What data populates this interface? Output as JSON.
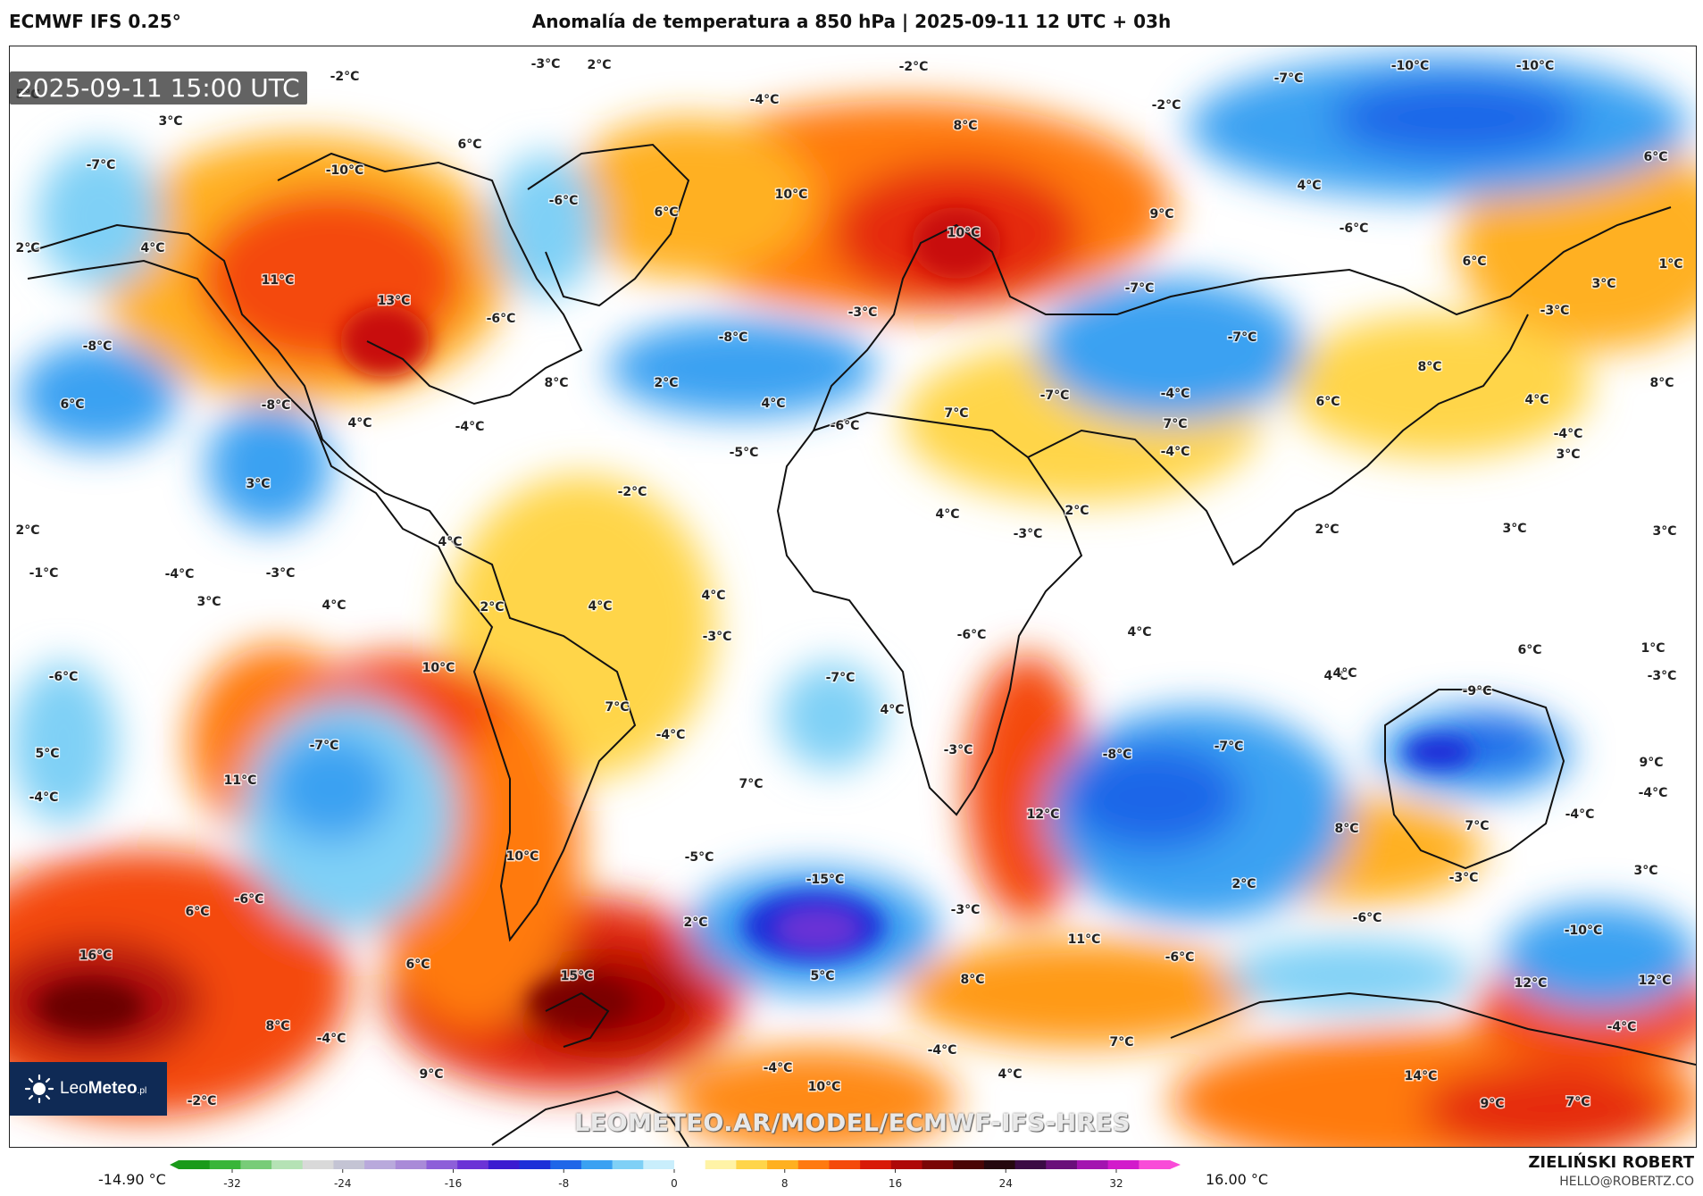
{
  "header": {
    "model": "ECMWF IFS 0.25°",
    "title": "Anomalía de temperatura a 850 hPa | 2025-09-11 12 UTC + 03h"
  },
  "timestamp": "2025-09-11 15:00 UTC",
  "logo": {
    "text_plain": "Leo",
    "text_bold": "Meteo",
    "suffix": ".pl"
  },
  "watermark": "LEOMETEO.AR/MODEL/ECMWF-IFS-HRES",
  "author": {
    "name": "ZIELIŃSKI ROBERT",
    "email": "HELLO@ROBERTZ.CO"
  },
  "colorbar": {
    "min_label": "-14.90 °C",
    "max_label": "16.00 °C",
    "ticks": [
      "-32",
      "-24",
      "-16",
      "-8",
      "0",
      "8",
      "16",
      "24",
      "32"
    ],
    "colors": [
      "#1a9a1a",
      "#39b539",
      "#78cc78",
      "#b5e2b5",
      "#d9d9d9",
      "#c4c4d4",
      "#b9a9dc",
      "#a98ad8",
      "#8d5fd9",
      "#6b33d6",
      "#3b1bd0",
      "#1c2fd8",
      "#1f66e8",
      "#3aa1f2",
      "#7fd0f6",
      "#c9eefc",
      "#ffffff",
      "#fff3a6",
      "#ffd54a",
      "#ffb020",
      "#ff7a10",
      "#f44a0a",
      "#d81a08",
      "#ae0808",
      "#7a0505",
      "#4a0606",
      "#25070e",
      "#3b0a44",
      "#6a0f7a",
      "#a314b0",
      "#d21bcb",
      "#f94cd8"
    ]
  },
  "map_labels": [
    {
      "t": "-2°C"
    },
    {
      "t": "-3°C"
    },
    {
      "t": "2°C"
    },
    {
      "t": "-2°C"
    },
    {
      "t": "-7°C"
    },
    {
      "t": "-10°C"
    },
    {
      "t": "-10°C"
    },
    {
      "t": "5°C"
    },
    {
      "t": "3°C"
    },
    {
      "t": "-4°C"
    },
    {
      "t": "8°C"
    },
    {
      "t": "-2°C"
    },
    {
      "t": "-7°C"
    },
    {
      "t": "6°C"
    },
    {
      "t": "-10°C"
    },
    {
      "t": "6°C"
    },
    {
      "t": "-6°C"
    },
    {
      "t": "10°C"
    },
    {
      "t": "9°C"
    },
    {
      "t": "4°C"
    },
    {
      "t": "6°C"
    },
    {
      "t": "-6°C"
    },
    {
      "t": "2°C"
    },
    {
      "t": "4°C"
    },
    {
      "t": "6°C"
    },
    {
      "t": "10°C"
    },
    {
      "t": "1°C"
    },
    {
      "t": "11°C"
    },
    {
      "t": "13°C"
    },
    {
      "t": "-6°C"
    },
    {
      "t": "-3°C"
    },
    {
      "t": "-7°C"
    },
    {
      "t": "3°C"
    },
    {
      "t": "-3°C"
    },
    {
      "t": "-8°C"
    },
    {
      "t": "-8°C"
    },
    {
      "t": "-7°C"
    },
    {
      "t": "8°C"
    },
    {
      "t": "2°C"
    },
    {
      "t": "8°C"
    },
    {
      "t": "6°C"
    },
    {
      "t": "-8°C"
    },
    {
      "t": "4°C"
    },
    {
      "t": "-4°C"
    },
    {
      "t": "4°C"
    },
    {
      "t": "-6°C"
    },
    {
      "t": "7°C"
    },
    {
      "t": "-7°C"
    },
    {
      "t": "7°C"
    },
    {
      "t": "6°C"
    },
    {
      "t": "-4°C"
    },
    {
      "t": "4°C"
    },
    {
      "t": "8°C"
    },
    {
      "t": "-5°C"
    },
    {
      "t": "-4°C"
    },
    {
      "t": "-4°C"
    },
    {
      "t": "3°C"
    },
    {
      "t": "3°C"
    },
    {
      "t": "-2°C"
    },
    {
      "t": "2°C"
    },
    {
      "t": "-3°C"
    },
    {
      "t": "4°C"
    },
    {
      "t": "2°C"
    },
    {
      "t": "3°C"
    },
    {
      "t": "3°C"
    },
    {
      "t": "2°C"
    },
    {
      "t": "4°C"
    },
    {
      "t": "-1°C"
    },
    {
      "t": "-4°C"
    },
    {
      "t": "-3°C"
    },
    {
      "t": "4°C"
    },
    {
      "t": "2°C"
    },
    {
      "t": "4°C"
    },
    {
      "t": "3°C"
    },
    {
      "t": "4°C"
    },
    {
      "t": "-3°C"
    },
    {
      "t": "-6°C"
    },
    {
      "t": "4°C"
    },
    {
      "t": "-6°C"
    },
    {
      "t": "10°C"
    },
    {
      "t": "-7°C"
    },
    {
      "t": "6°C"
    },
    {
      "t": "4°C"
    },
    {
      "t": "4°C"
    },
    {
      "t": "1°C"
    },
    {
      "t": "-3°C"
    },
    {
      "t": "-9°C"
    },
    {
      "t": "7°C"
    },
    {
      "t": "4°C"
    },
    {
      "t": "-4°C"
    },
    {
      "t": "5°C"
    },
    {
      "t": "-7°C"
    },
    {
      "t": "-3°C"
    },
    {
      "t": "-8°C"
    },
    {
      "t": "-7°C"
    },
    {
      "t": "-4°C"
    },
    {
      "t": "11°C"
    },
    {
      "t": "7°C"
    },
    {
      "t": "9°C"
    },
    {
      "t": "-4°C"
    },
    {
      "t": "12°C"
    },
    {
      "t": "8°C"
    },
    {
      "t": "7°C"
    },
    {
      "t": "-4°C"
    },
    {
      "t": "10°C"
    },
    {
      "t": "-5°C"
    },
    {
      "t": "-15°C"
    },
    {
      "t": "2°C"
    },
    {
      "t": "3°C"
    },
    {
      "t": "-3°C"
    },
    {
      "t": "6°C"
    },
    {
      "t": "-3°C"
    },
    {
      "t": "-6°C"
    },
    {
      "t": "2°C"
    },
    {
      "t": "-6°C"
    },
    {
      "t": "-10°C"
    },
    {
      "t": "11°C"
    },
    {
      "t": "-6°C"
    },
    {
      "t": "16°C"
    },
    {
      "t": "6°C"
    },
    {
      "t": "15°C"
    },
    {
      "t": "5°C"
    },
    {
      "t": "8°C"
    },
    {
      "t": "12°C"
    },
    {
      "t": "12°C"
    },
    {
      "t": "8°C"
    },
    {
      "t": "-4°C"
    },
    {
      "t": "-4°C"
    },
    {
      "t": "7°C"
    },
    {
      "t": "-4°C"
    },
    {
      "t": "9°C"
    },
    {
      "t": "-4°C"
    },
    {
      "t": "10°C"
    },
    {
      "t": "4°C"
    },
    {
      "t": "14°C"
    },
    {
      "t": "4°C"
    },
    {
      "t": "1°C"
    },
    {
      "t": "-2°C"
    },
    {
      "t": "9°C"
    },
    {
      "t": "7°C"
    }
  ]
}
